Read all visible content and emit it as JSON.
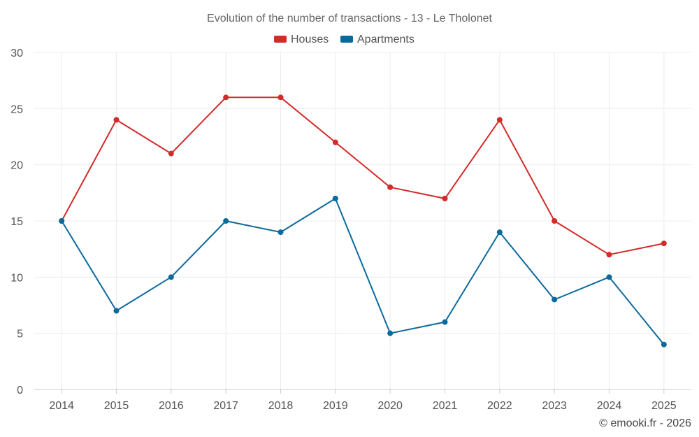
{
  "chart_data": {
    "type": "line",
    "title": "Evolution of the number of transactions - 13 - Le Tholonet",
    "xlabel": "",
    "ylabel": "",
    "categories": [
      "2014",
      "2015",
      "2016",
      "2017",
      "2018",
      "2019",
      "2020",
      "2021",
      "2022",
      "2023",
      "2024",
      "2025"
    ],
    "ylim": [
      0,
      30
    ],
    "yticks": [
      0,
      5,
      10,
      15,
      20,
      25,
      30
    ],
    "grid": true,
    "legend_position": "top-center",
    "series": [
      {
        "name": "Houses",
        "color": "#d42a2a",
        "values": [
          15,
          24,
          21,
          26,
          26,
          22,
          18,
          17,
          24,
          15,
          12,
          13
        ]
      },
      {
        "name": "Apartments",
        "color": "#0b6a9c",
        "values": [
          15,
          7,
          10,
          15,
          14,
          17,
          5,
          6,
          14,
          8,
          10,
          4
        ]
      }
    ]
  },
  "credit": "© emooki.fr - 2026"
}
